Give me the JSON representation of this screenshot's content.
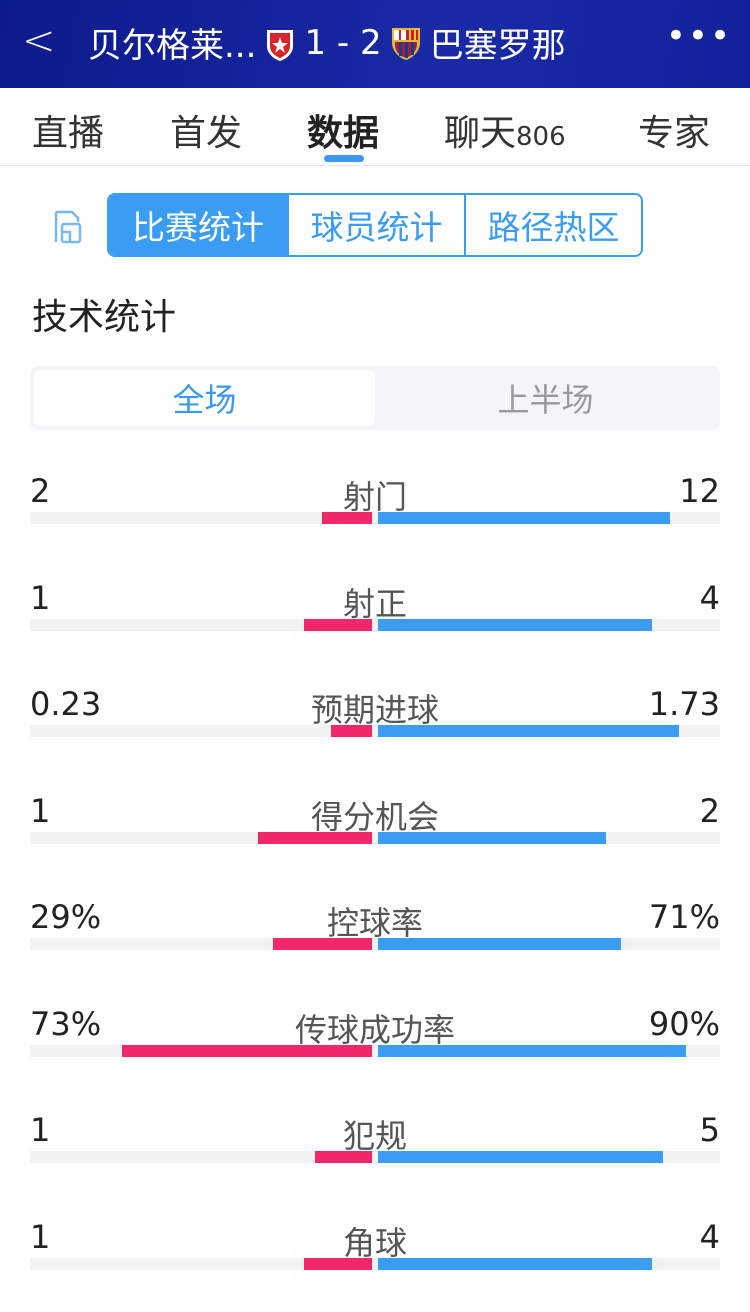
{
  "header": {
    "back_icon": "chevron-left-icon",
    "home_team": "贝尔格莱...",
    "score": "1 - 2",
    "away_team": "巴塞罗那",
    "more_icon": "ellipsis-icon"
  },
  "tabs": [
    {
      "label": "直播"
    },
    {
      "label": "首发"
    },
    {
      "label": "数据",
      "active": true
    },
    {
      "label": "聊天",
      "badge": "806"
    },
    {
      "label": "专家"
    }
  ],
  "segments": [
    "比赛统计",
    "球员统计",
    "路径热区"
  ],
  "section_title": "技术统计",
  "periods": [
    "全场",
    "上半场"
  ],
  "colors": {
    "home": "#f0286a",
    "away": "#3a9cf2",
    "accent": "#3a98f0"
  },
  "stats": [
    {
      "label": "射门",
      "home": "2",
      "away": "12",
      "home_fill": 0.146,
      "away_fill": 0.854
    },
    {
      "label": "射正",
      "home": "1",
      "away": "4",
      "home_fill": 0.2,
      "away_fill": 0.8
    },
    {
      "label": "预期进球",
      "home": "0.23",
      "away": "1.73",
      "home_fill": 0.12,
      "away_fill": 0.88
    },
    {
      "label": "得分机会",
      "home": "1",
      "away": "2",
      "home_fill": 0.333,
      "away_fill": 0.667
    },
    {
      "label": "控球率",
      "home": "29%",
      "away": "71%",
      "home_fill": 0.29,
      "away_fill": 0.71
    },
    {
      "label": "传球成功率",
      "home": "73%",
      "away": "90%",
      "home_fill": 0.73,
      "away_fill": 0.9
    },
    {
      "label": "犯规",
      "home": "1",
      "away": "5",
      "home_fill": 0.167,
      "away_fill": 0.833
    },
    {
      "label": "角球",
      "home": "1",
      "away": "4",
      "home_fill": 0.2,
      "away_fill": 0.8
    }
  ]
}
